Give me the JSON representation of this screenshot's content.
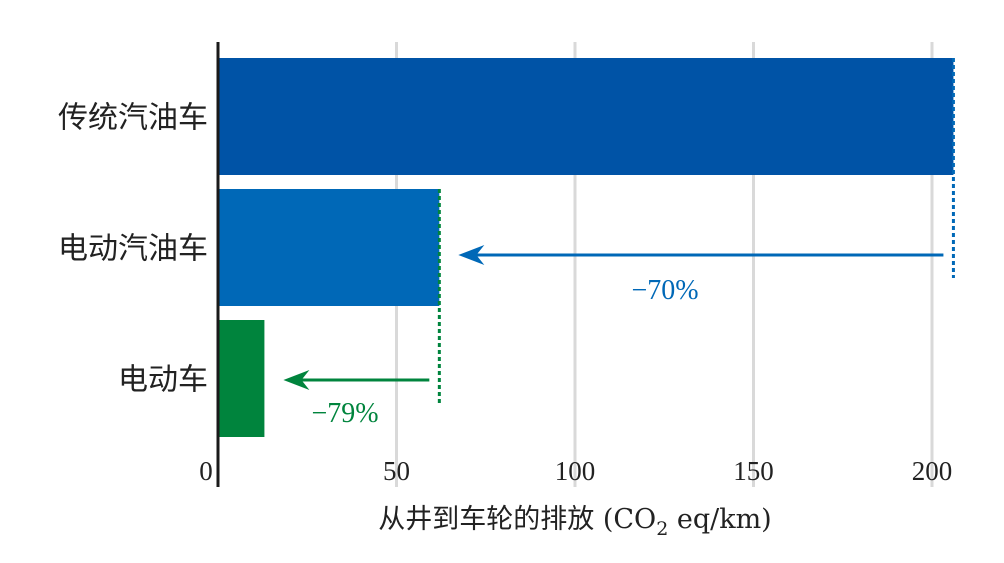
{
  "chart_data": {
    "type": "bar",
    "orientation": "horizontal",
    "categories": [
      "传统汽油车",
      "电动汽油车",
      "电动车"
    ],
    "values": [
      206,
      62,
      13
    ],
    "bar_colors": [
      "#0053a6",
      "#0068b7",
      "#00843d"
    ],
    "xlim": [
      0,
      210
    ],
    "xticks": [
      "0",
      "50",
      "100",
      "150",
      "200"
    ],
    "xtick_values": [
      0,
      50,
      100,
      150,
      200
    ],
    "grid": "vertical",
    "xlabel": {
      "prefix": "从井到车轮的排放 (CO",
      "subscript": "2",
      "suffix": " eq/km)"
    },
    "annotations": [
      {
        "from": 206,
        "to": 62,
        "label": "−70%",
        "color": "#0068b7"
      },
      {
        "from": 62,
        "to": 13,
        "label": "−79%",
        "color": "#00843d"
      }
    ]
  }
}
